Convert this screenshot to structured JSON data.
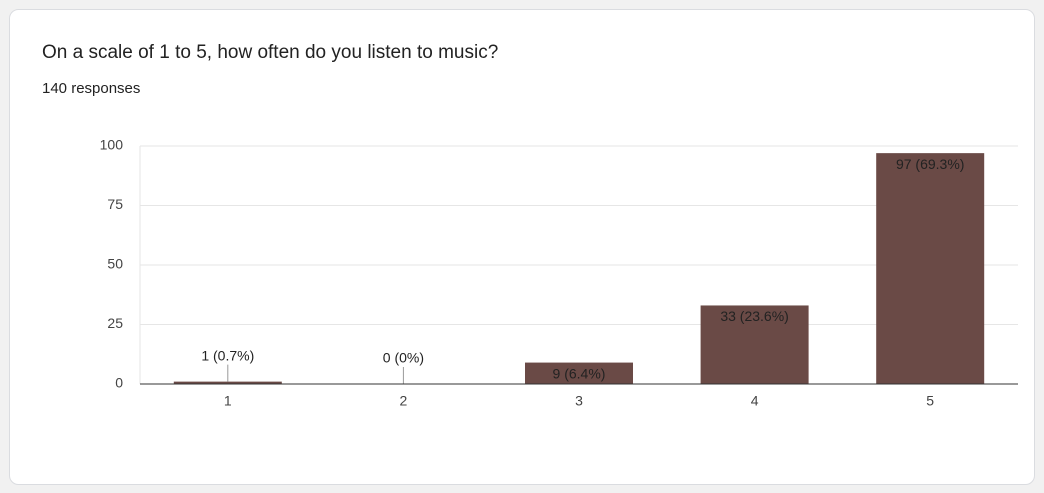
{
  "chart_data": {
    "type": "bar",
    "title": "On a scale of 1 to 5, how often do you listen to music?",
    "subtitle": "140 responses",
    "categories": [
      "1",
      "2",
      "3",
      "4",
      "5"
    ],
    "values": [
      1,
      0,
      9,
      33,
      97
    ],
    "value_labels": [
      "1 (0.7%)",
      "0 (0%)",
      "9 (6.4%)",
      "33 (23.6%)",
      "97 (69.3%)"
    ],
    "color": "#6a4a46",
    "ylim": [
      0,
      100
    ],
    "yticks": [
      0,
      25,
      50,
      75,
      100
    ],
    "grid": true
  }
}
